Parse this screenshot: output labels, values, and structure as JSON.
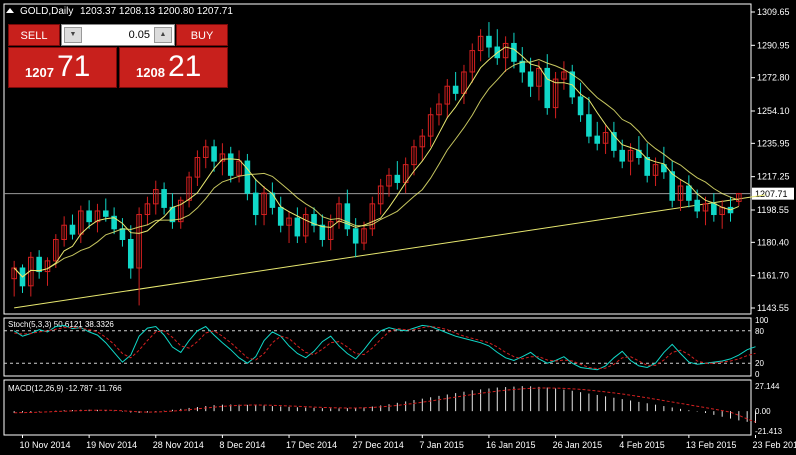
{
  "header": {
    "symbol": "GOLD,Daily",
    "ohlc": "1203.37 1208.13 1200.80 1207.71"
  },
  "trade_panel": {
    "sell_label": "SELL",
    "buy_label": "BUY",
    "lot_value": "0.05",
    "sell_price_small": "1207",
    "sell_price_big": "71",
    "buy_price_small": "1208",
    "buy_price_big": "21"
  },
  "colors": {
    "background": "#000000",
    "bull": "#d42020",
    "bear": "#10d8c8",
    "ma": "#e8e870",
    "trendline": "#e8e870",
    "grid_text": "#ffffff",
    "osc_main": "#10d8c8",
    "osc_signal": "#d42020"
  },
  "chart_data": [
    {
      "type": "candlestick",
      "title": "GOLD,Daily",
      "ohlc_readout": "1203.37 1208.13 1200.80 1207.71",
      "current_price": 1207.71,
      "current_price_label": "1207.71",
      "ylim": [
        1143.55,
        1309.65
      ],
      "y_ticks": [
        1309.65,
        1290.95,
        1272.8,
        1254.1,
        1235.95,
        1217.25,
        1198.55,
        1180.4,
        1161.7,
        1143.55
      ],
      "y_tick_labels": [
        "1309.65",
        "1290.95",
        "1272.80",
        "1254.10",
        "1235.95",
        "1217.25",
        "1198.55",
        "1180.40",
        "1161.70",
        "1143.55"
      ],
      "x_labels": [
        "10 Nov 2014",
        "19 Nov 2014",
        "28 Nov 2014",
        "8 Dec 2014",
        "17 Dec 2014",
        "27 Dec 2014",
        "7 Jan 2015",
        "16 Jan 2015",
        "26 Jan 2015",
        "4 Feb 2015",
        "13 Feb 2015",
        "23 Feb 2015"
      ],
      "x_label_bar_index": [
        1,
        9,
        17,
        25,
        33,
        41,
        49,
        57,
        65,
        73,
        81,
        89
      ],
      "candles": [
        [
          1160,
          1170,
          1150,
          1166
        ],
        [
          1166,
          1168,
          1152,
          1156
        ],
        [
          1156,
          1175,
          1150,
          1172
        ],
        [
          1172,
          1176,
          1160,
          1164
        ],
        [
          1164,
          1172,
          1156,
          1170
        ],
        [
          1170,
          1185,
          1166,
          1182
        ],
        [
          1182,
          1195,
          1178,
          1190
        ],
        [
          1190,
          1196,
          1182,
          1185
        ],
        [
          1185,
          1201,
          1180,
          1198
        ],
        [
          1198,
          1204,
          1188,
          1192
        ],
        [
          1192,
          1202,
          1186,
          1198
        ],
        [
          1198,
          1205,
          1192,
          1195
        ],
        [
          1195,
          1200,
          1185,
          1188
        ],
        [
          1188,
          1194,
          1178,
          1182
        ],
        [
          1182,
          1190,
          1160,
          1166
        ],
        [
          1166,
          1200,
          1145,
          1196
        ],
        [
          1196,
          1206,
          1190,
          1202
        ],
        [
          1202,
          1215,
          1196,
          1210
        ],
        [
          1210,
          1214,
          1196,
          1200
        ],
        [
          1200,
          1208,
          1188,
          1192
        ],
        [
          1192,
          1206,
          1188,
          1204
        ],
        [
          1204,
          1220,
          1200,
          1217
        ],
        [
          1217,
          1232,
          1212,
          1228
        ],
        [
          1228,
          1238,
          1222,
          1234
        ],
        [
          1234,
          1238,
          1220,
          1226
        ],
        [
          1226,
          1236,
          1218,
          1230
        ],
        [
          1230,
          1234,
          1214,
          1218
        ],
        [
          1218,
          1232,
          1214,
          1226
        ],
        [
          1226,
          1230,
          1204,
          1208
        ],
        [
          1208,
          1216,
          1190,
          1196
        ],
        [
          1196,
          1212,
          1190,
          1208
        ],
        [
          1208,
          1214,
          1196,
          1200
        ],
        [
          1200,
          1206,
          1186,
          1190
        ],
        [
          1190,
          1198,
          1180,
          1194
        ],
        [
          1194,
          1200,
          1180,
          1184
        ],
        [
          1184,
          1200,
          1180,
          1196
        ],
        [
          1196,
          1200,
          1186,
          1190
        ],
        [
          1190,
          1196,
          1178,
          1182
        ],
        [
          1182,
          1196,
          1176,
          1192
        ],
        [
          1192,
          1206,
          1188,
          1202
        ],
        [
          1202,
          1210,
          1184,
          1188
        ],
        [
          1188,
          1194,
          1172,
          1180
        ],
        [
          1180,
          1192,
          1176,
          1188
        ],
        [
          1188,
          1206,
          1184,
          1202
        ],
        [
          1202,
          1216,
          1196,
          1212
        ],
        [
          1212,
          1222,
          1206,
          1218
        ],
        [
          1218,
          1226,
          1210,
          1214
        ],
        [
          1214,
          1228,
          1208,
          1224
        ],
        [
          1224,
          1238,
          1218,
          1234
        ],
        [
          1234,
          1244,
          1226,
          1240
        ],
        [
          1240,
          1256,
          1234,
          1252
        ],
        [
          1252,
          1264,
          1246,
          1258
        ],
        [
          1258,
          1272,
          1250,
          1268
        ],
        [
          1268,
          1276,
          1260,
          1264
        ],
        [
          1264,
          1280,
          1258,
          1276
        ],
        [
          1276,
          1292,
          1270,
          1288
        ],
        [
          1288,
          1300,
          1282,
          1296
        ],
        [
          1296,
          1304,
          1284,
          1290
        ],
        [
          1290,
          1300,
          1280,
          1284
        ],
        [
          1284,
          1296,
          1276,
          1292
        ],
        [
          1292,
          1298,
          1278,
          1282
        ],
        [
          1282,
          1290,
          1270,
          1276
        ],
        [
          1276,
          1284,
          1262,
          1268
        ],
        [
          1268,
          1282,
          1260,
          1278
        ],
        [
          1278,
          1286,
          1252,
          1256
        ],
        [
          1256,
          1276,
          1250,
          1272
        ],
        [
          1272,
          1282,
          1266,
          1276
        ],
        [
          1276,
          1280,
          1258,
          1262
        ],
        [
          1262,
          1270,
          1248,
          1252
        ],
        [
          1252,
          1262,
          1236,
          1240
        ],
        [
          1240,
          1248,
          1232,
          1236
        ],
        [
          1236,
          1246,
          1230,
          1242
        ],
        [
          1242,
          1248,
          1228,
          1232
        ],
        [
          1232,
          1238,
          1222,
          1226
        ],
        [
          1226,
          1236,
          1218,
          1232
        ],
        [
          1232,
          1240,
          1224,
          1228
        ],
        [
          1228,
          1236,
          1214,
          1218
        ],
        [
          1218,
          1228,
          1212,
          1224
        ],
        [
          1224,
          1234,
          1216,
          1220
        ],
        [
          1220,
          1226,
          1200,
          1204
        ],
        [
          1204,
          1216,
          1198,
          1212
        ],
        [
          1212,
          1218,
          1200,
          1204
        ],
        [
          1204,
          1210,
          1194,
          1198
        ],
        [
          1198,
          1206,
          1190,
          1202
        ],
        [
          1202,
          1208,
          1192,
          1196
        ],
        [
          1196,
          1204,
          1188,
          1200
        ],
        [
          1200,
          1206,
          1192,
          1197
        ],
        [
          1203.37,
          1208.13,
          1200.8,
          1207.71
        ]
      ],
      "trendline": [
        [
          0,
          1143.6
        ],
        [
          89,
          1207.0
        ]
      ],
      "ma_period": 5
    },
    {
      "type": "line",
      "title": "Stoch(5,3,3) 50.6121 38.3326",
      "ylim": [
        0,
        100
      ],
      "levels": [
        80,
        20
      ],
      "y_tick_labels": [
        "100",
        "80",
        "20",
        "0"
      ],
      "y_tick_values": [
        100,
        80,
        20,
        0
      ],
      "series": [
        {
          "name": "main",
          "values": [
            80,
            70,
            75,
            82,
            78,
            88,
            90,
            84,
            86,
            78,
            72,
            58,
            40,
            22,
            35,
            70,
            85,
            88,
            72,
            50,
            40,
            62,
            80,
            88,
            72,
            58,
            45,
            30,
            20,
            32,
            62,
            78,
            70,
            52,
            38,
            30,
            42,
            60,
            70,
            52,
            38,
            28,
            45,
            65,
            80,
            86,
            82,
            80,
            85,
            90,
            88,
            82,
            76,
            70,
            66,
            62,
            58,
            52,
            40,
            30,
            25,
            32,
            40,
            28,
            20,
            25,
            32,
            20,
            12,
            10,
            8,
            15,
            30,
            42,
            25,
            15,
            12,
            20,
            40,
            55,
            38,
            22,
            18,
            20,
            22,
            24,
            28,
            35,
            45,
            50.6
          ]
        },
        {
          "name": "signal",
          "values": [
            76,
            74,
            75,
            78,
            80,
            83,
            86,
            86,
            85,
            82,
            78,
            68,
            55,
            38,
            30,
            44,
            62,
            78,
            80,
            68,
            52,
            48,
            60,
            76,
            80,
            70,
            58,
            44,
            30,
            26,
            38,
            58,
            70,
            66,
            52,
            40,
            36,
            46,
            58,
            60,
            50,
            38,
            36,
            48,
            64,
            78,
            84,
            82,
            82,
            86,
            88,
            86,
            82,
            76,
            70,
            66,
            62,
            58,
            50,
            40,
            32,
            28,
            32,
            32,
            26,
            24,
            26,
            24,
            18,
            12,
            10,
            11,
            18,
            30,
            32,
            24,
            16,
            16,
            26,
            40,
            44,
            36,
            24,
            20,
            20,
            22,
            24,
            28,
            34,
            38.3
          ]
        }
      ]
    },
    {
      "type": "bar",
      "title": "MACD(12,26,9) -12.787 -11.766",
      "ylim": [
        -21.413,
        27.144
      ],
      "y_tick_labels": [
        "27.144",
        "0.00",
        "-21.413"
      ],
      "y_tick_values": [
        27.144,
        0,
        -21.413
      ],
      "values": [
        -2,
        -1.5,
        -1,
        -0.5,
        0,
        0.5,
        1,
        1.2,
        1.5,
        1.6,
        1.4,
        1.0,
        0.5,
        -0.5,
        -1.5,
        -2,
        -1.5,
        -0.5,
        0.5,
        1.5,
        2.5,
        3.5,
        4.5,
        5.5,
        6.5,
        7.0,
        7.2,
        7.0,
        6.8,
        6.5,
        6.0,
        5.5,
        5.0,
        4.6,
        4.2,
        3.8,
        3.5,
        3.2,
        3.0,
        3.0,
        3.2,
        3.5,
        4.0,
        5.0,
        6.2,
        7.5,
        9.0,
        10.5,
        12,
        13.5,
        15,
        16.5,
        18,
        19.5,
        21,
        22.5,
        23.5,
        24.5,
        25.5,
        26,
        26.5,
        27,
        26.8,
        26.2,
        25.5,
        24.5,
        23.2,
        22,
        20.5,
        19,
        17.5,
        16,
        14.5,
        13,
        11.5,
        10,
        8.5,
        7,
        5.5,
        4,
        2.5,
        1,
        -0.5,
        -2,
        -4,
        -6,
        -8,
        -10,
        -11.5,
        -12.787
      ],
      "signal": [
        -1.8,
        -1.6,
        -1.4,
        -1.1,
        -0.8,
        -0.4,
        0,
        0.3,
        0.6,
        0.9,
        1.0,
        1.0,
        0.8,
        0.4,
        -0.2,
        -0.8,
        -1.0,
        -0.9,
        -0.5,
        0.1,
        0.8,
        1.6,
        2.5,
        3.4,
        4.3,
        5.1,
        5.8,
        6.2,
        6.5,
        6.6,
        6.5,
        6.3,
        6.0,
        5.6,
        5.2,
        4.8,
        4.4,
        4.0,
        3.7,
        3.5,
        3.4,
        3.4,
        3.6,
        4.0,
        4.6,
        5.3,
        6.2,
        7.3,
        8.4,
        9.7,
        11,
        12.4,
        13.8,
        15.2,
        16.6,
        18,
        19.3,
        20.5,
        21.6,
        22.6,
        23.4,
        24.1,
        24.6,
        24.9,
        25,
        24.9,
        24.6,
        24.1,
        23.5,
        22.7,
        21.8,
        20.8,
        19.7,
        18.5,
        17.2,
        15.8,
        14.4,
        12.9,
        11.4,
        9.9,
        8.4,
        6.9,
        5.4,
        3.8,
        2.2,
        0.6,
        -1.1,
        -4.5,
        -8.5,
        -11.766
      ]
    }
  ]
}
